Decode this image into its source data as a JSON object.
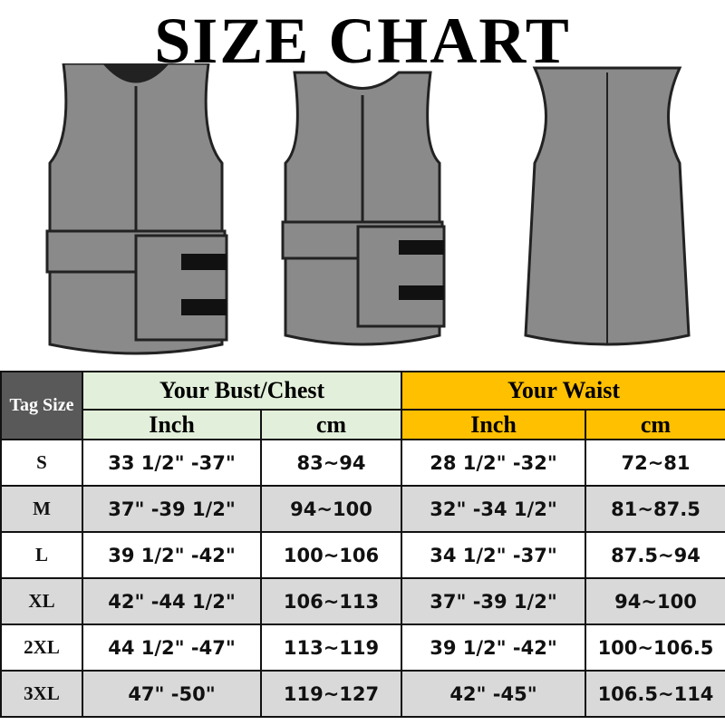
{
  "title": "SIZE CHART",
  "colors": {
    "tag_header": "#595959",
    "bust_header": "#e2efda",
    "waist_header": "#ffc000",
    "alt_row": "#d9d9d9"
  },
  "table": {
    "tag_size": "Tag Size",
    "bust": "Your Bust/Chest",
    "waist": "Your Waist",
    "inch": "Inch",
    "cm": "cm",
    "rows": [
      {
        "size": "S",
        "bust_in": "33 1/2\" -37\"",
        "bust_cm": "83~94",
        "waist_in": "28 1/2\" -32\"",
        "waist_cm": "72~81"
      },
      {
        "size": "M",
        "bust_in": "37\" -39 1/2\"",
        "bust_cm": "94~100",
        "waist_in": "32\" -34 1/2\"",
        "waist_cm": "81~87.5"
      },
      {
        "size": "L",
        "bust_in": "39 1/2\" -42\"",
        "bust_cm": "100~106",
        "waist_in": "34 1/2\" -37\"",
        "waist_cm": "87.5~94"
      },
      {
        "size": "XL",
        "bust_in": "42\" -44 1/2\"",
        "bust_cm": "106~113",
        "waist_in": "37\" -39 1/2\"",
        "waist_cm": "94~100"
      },
      {
        "size": "2XL",
        "bust_in": "44 1/2\" -47\"",
        "bust_cm": "113~119",
        "waist_in": "39 1/2\" -42\"",
        "waist_cm": "100~106.5"
      },
      {
        "size": "3XL",
        "bust_in": "47\" -50\"",
        "bust_cm": "119~127",
        "waist_in": "42\" -45\"",
        "waist_cm": "106.5~114"
      }
    ]
  }
}
